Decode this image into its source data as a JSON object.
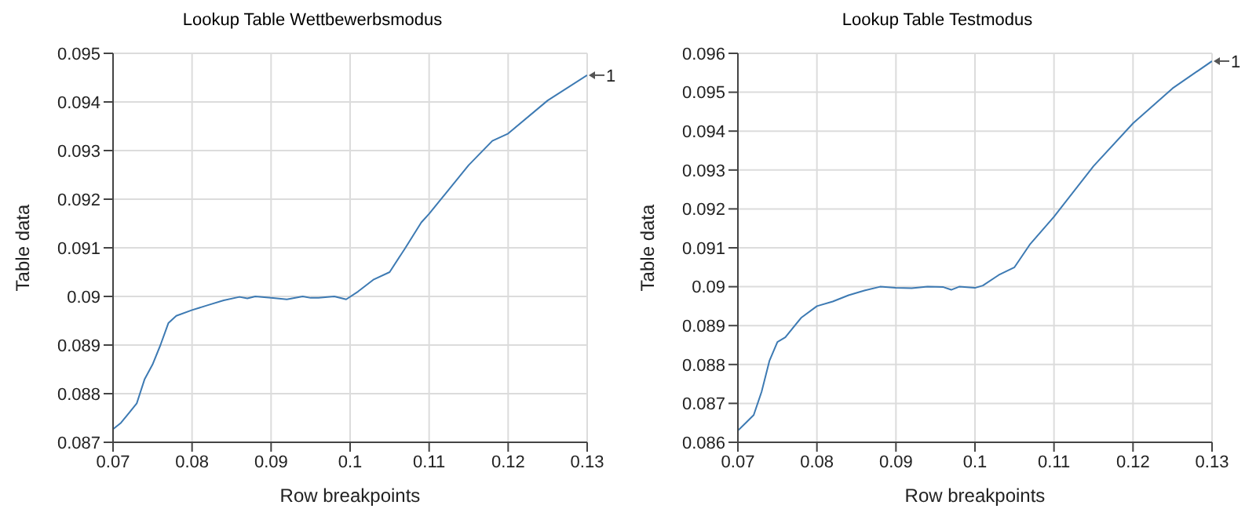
{
  "chart_data": [
    {
      "type": "line",
      "title": "Lookup Table Wettbewerbsmodus",
      "xlabel": "Row breakpoints",
      "ylabel": "Table data",
      "grid": true,
      "legend": false,
      "marker": "none",
      "line_style": "solid",
      "x": [
        0.07,
        0.071,
        0.072,
        0.073,
        0.074,
        0.075,
        0.076,
        0.077,
        0.078,
        0.08,
        0.082,
        0.084,
        0.086,
        0.087,
        0.088,
        0.09,
        0.092,
        0.094,
        0.095,
        0.096,
        0.098,
        0.0995,
        0.101,
        0.103,
        0.105,
        0.107,
        0.109,
        0.11,
        0.112,
        0.115,
        0.118,
        0.12,
        0.125,
        0.13
      ],
      "series": [
        {
          "color": "#3d7ab3",
          "values": [
            0.08727,
            0.0874,
            0.0876,
            0.0878,
            0.0883,
            0.0886,
            0.089,
            0.08945,
            0.0896,
            0.08972,
            0.08982,
            0.08992,
            0.08999,
            0.08996,
            0.09,
            0.08997,
            0.08994,
            0.09,
            0.08997,
            0.08997,
            0.09,
            0.08994,
            0.0901,
            0.09035,
            0.0905,
            0.091,
            0.09152,
            0.0917,
            0.0921,
            0.0927,
            0.0932,
            0.09335,
            0.09403,
            0.09455
          ]
        }
      ],
      "xlim": [
        0.07,
        0.13
      ],
      "xticks": [
        0.07,
        0.08,
        0.09,
        0.1,
        0.11,
        0.12,
        0.13
      ],
      "ylim": [
        0.087,
        0.095
      ],
      "yticks": [
        0.087,
        0.088,
        0.089,
        0.09,
        0.091,
        0.092,
        0.093,
        0.094,
        0.095
      ],
      "annotations": [
        {
          "text": "1",
          "x": 0.13,
          "y": 0.09455
        }
      ]
    },
    {
      "type": "line",
      "title": "Lookup Table Testmodus",
      "xlabel": "Row breakpoints",
      "ylabel": "Table data",
      "grid": true,
      "legend": false,
      "marker": "none",
      "line_style": "solid",
      "x": [
        0.07,
        0.071,
        0.072,
        0.073,
        0.074,
        0.075,
        0.076,
        0.078,
        0.08,
        0.082,
        0.084,
        0.086,
        0.088,
        0.09,
        0.092,
        0.094,
        0.096,
        0.097,
        0.098,
        0.1,
        0.101,
        0.103,
        0.105,
        0.107,
        0.11,
        0.115,
        0.12,
        0.125,
        0.13
      ],
      "series": [
        {
          "color": "#3d7ab3",
          "values": [
            0.0863,
            0.0865,
            0.0867,
            0.0873,
            0.0881,
            0.08858,
            0.0887,
            0.0892,
            0.0895,
            0.08962,
            0.08978,
            0.0899,
            0.09,
            0.08997,
            0.08996,
            0.09,
            0.08999,
            0.08992,
            0.09,
            0.08997,
            0.09003,
            0.0903,
            0.0905,
            0.0911,
            0.0918,
            0.0931,
            0.0942,
            0.0951,
            0.0958
          ]
        }
      ],
      "xlim": [
        0.07,
        0.13
      ],
      "xticks": [
        0.07,
        0.08,
        0.09,
        0.1,
        0.11,
        0.12,
        0.13
      ],
      "ylim": [
        0.086,
        0.096
      ],
      "yticks": [
        0.086,
        0.087,
        0.088,
        0.089,
        0.09,
        0.091,
        0.092,
        0.093,
        0.094,
        0.095,
        0.096
      ],
      "annotations": [
        {
          "text": "1",
          "x": 0.13,
          "y": 0.0958
        }
      ]
    }
  ]
}
